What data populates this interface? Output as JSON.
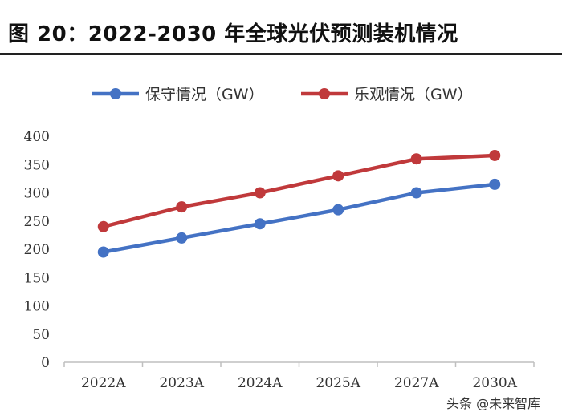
{
  "figure_title": "图 20：2022-2030 年全球光伏预测装机情况",
  "watermark": "头条 @未来智库",
  "chart_data": {
    "type": "line",
    "categories": [
      "2022A",
      "2023A",
      "2024A",
      "2025A",
      "2027A",
      "2030A"
    ],
    "series": [
      {
        "name": "保守情况（GW）",
        "color": "#4472c4",
        "values": [
          195,
          220,
          245,
          270,
          300,
          315
        ]
      },
      {
        "name": "乐观情况（GW）",
        "color": "#c0393b",
        "values": [
          240,
          275,
          300,
          330,
          360,
          366
        ]
      }
    ],
    "ylim": [
      0,
      400
    ],
    "yticks": [
      0,
      50,
      100,
      150,
      200,
      250,
      300,
      350,
      400
    ],
    "legend_position": "top",
    "grid": false
  }
}
